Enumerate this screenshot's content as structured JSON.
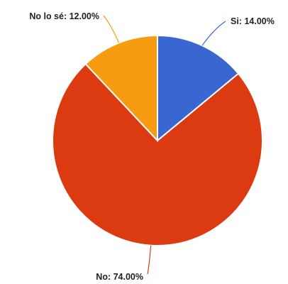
{
  "chart_data": {
    "type": "pie",
    "slices": [
      {
        "label": "Si",
        "value": 14.0,
        "text": "Si: 14.00%",
        "color": "#3a66d1"
      },
      {
        "label": "No",
        "value": 74.0,
        "text": "No: 74.00%",
        "color": "#dc3b12"
      },
      {
        "label": "No lo sé",
        "value": 12.0,
        "text": "No lo sé: 12.00%",
        "color": "#f79b10"
      }
    ]
  }
}
